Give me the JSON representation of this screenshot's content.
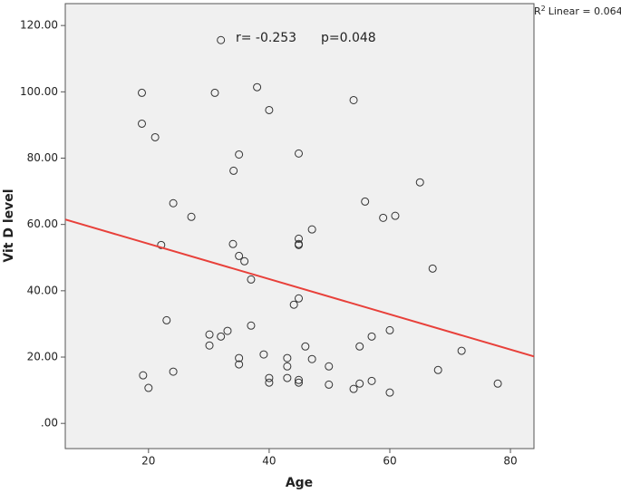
{
  "chart_data": {
    "type": "scatter",
    "x_label": "Age",
    "y_label": "Vit D level",
    "annotations": {
      "r_text": "r= -0.253",
      "p_text": "p=0.048",
      "r2_label": {
        "base": "R",
        "sup": "2",
        "rest": "Linear = 0.064"
      }
    },
    "x": [
      18.9,
      18.9,
      21.1,
      32.0,
      31.0,
      38.0,
      40.0,
      54.0,
      35.0,
      44.9,
      34.1,
      65.0,
      24.1,
      27.1,
      55.9,
      58.9,
      60.9,
      47.1,
      44.9,
      44.9,
      44.9,
      22.1,
      34.0,
      35.0,
      35.9,
      67.1,
      37.0,
      44.9,
      44.1,
      23.0,
      37.0,
      33.1,
      30.1,
      32.0,
      57.0,
      60.0,
      30.1,
      46.0,
      55.0,
      71.9,
      39.1,
      43.0,
      35.0,
      47.1,
      35.0,
      43.0,
      49.9,
      24.1,
      19.1,
      68.0,
      40.0,
      43.0,
      44.9,
      57.0,
      40.0,
      44.9,
      49.9,
      55.0,
      77.9,
      54.0,
      20.0,
      60.0
    ],
    "values": [
      99.7,
      90.4,
      86.3,
      115.6,
      99.7,
      101.4,
      94.5,
      97.5,
      81.1,
      81.4,
      76.2,
      72.7,
      66.4,
      62.3,
      66.9,
      62.0,
      62.6,
      58.5,
      55.7,
      54.1,
      53.8,
      53.8,
      54.1,
      50.5,
      48.9,
      46.7,
      43.4,
      37.7,
      35.8,
      31.1,
      29.5,
      27.9,
      26.8,
      26.2,
      26.2,
      28.1,
      23.5,
      23.2,
      23.2,
      21.9,
      20.8,
      19.7,
      19.7,
      19.4,
      17.8,
      17.2,
      17.2,
      15.6,
      14.5,
      16.1,
      13.7,
      13.7,
      13.1,
      12.8,
      12.3,
      12.3,
      11.7,
      12.0,
      12.0,
      10.4,
      10.7,
      9.3
    ],
    "marker_color": "#333333",
    "fit_line": {
      "x": [
        6.2,
        83.9
      ],
      "y": [
        61.5,
        20.2
      ],
      "color": "#e8403a"
    },
    "xlim": [
      6.2,
      83.9
    ],
    "ylim": [
      -7.6,
      126.6
    ],
    "xticks": [
      20,
      40,
      60,
      80
    ],
    "yticks": [
      {
        "value": 0,
        "label": ".00"
      },
      {
        "value": 20,
        "label": "20.00"
      },
      {
        "value": 40,
        "label": "40.00"
      },
      {
        "value": 60,
        "label": "60.00"
      },
      {
        "value": 80,
        "label": "80.00"
      },
      {
        "value": 100,
        "label": "100.00"
      },
      {
        "value": 120,
        "label": "120.00"
      }
    ],
    "plot_background": "#f0f0f0"
  }
}
